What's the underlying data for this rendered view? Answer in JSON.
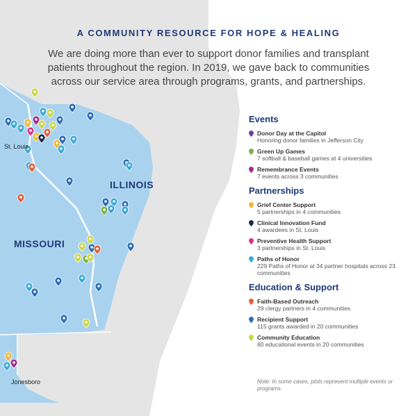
{
  "header": {
    "title": "A COMMUNITY RESOURCE FOR HOPE & HEALING",
    "body": "We are doing more than ever to support donor families and transplant patients throughout the region. In 2019, we gave back to communities across our service area through programs, grants, and partnerships."
  },
  "map": {
    "city_labels": {
      "st_louis": "St. Louis",
      "jonesboro": "Jonesboro"
    },
    "state_labels": {
      "illinois": "ILLINOIS",
      "missouri": "MISSOURI"
    },
    "colors": {
      "service_area": "#a9d2ee",
      "land": "#e5e5e5",
      "border": "#ffffff"
    }
  },
  "legend": {
    "events": {
      "heading": "Events",
      "items": [
        {
          "title": "Donor Day at the Capitol",
          "desc": "Honoring donor families in Jefferson City",
          "color": "#6b3fa0"
        },
        {
          "title": "Green Up Games",
          "desc": "7 softball & baseball games at 4 universities",
          "color": "#7cb342"
        },
        {
          "title": "Remembrance Events",
          "desc": "7 events across 3 communities",
          "color": "#a52a8e"
        }
      ]
    },
    "partnerships": {
      "heading": "Partnerships",
      "items": [
        {
          "title": "Grief Center Support",
          "desc": "5 partnerships in 4 communities",
          "color": "#f2b632"
        },
        {
          "title": "Clinical Innovation Fund",
          "desc": "4 awardees in St. Louis",
          "color": "#1b2a4a"
        },
        {
          "title": "Preventive Health Support",
          "desc": "3 partnerships in St. Louis",
          "color": "#d6338a"
        },
        {
          "title": "Paths of Honor",
          "desc": "229 Paths of Honor at 34 partner hospitals across 23 communities",
          "color": "#3aa9d6"
        }
      ]
    },
    "education": {
      "heading": "Education & Support",
      "items": [
        {
          "title": "Faith-Based Outreach",
          "desc": "29 clergy partners in 4 communities",
          "color": "#e2603a"
        },
        {
          "title": "Recipient Support",
          "desc": "115 grants awarded in 20 communities",
          "color": "#2a6db5"
        },
        {
          "title": "Community Education",
          "desc": "60 educational events in 20 communities",
          "color": "#c9d64a"
        }
      ]
    }
  },
  "note": "Note: In some cases, plots represent multiple events or programs."
}
